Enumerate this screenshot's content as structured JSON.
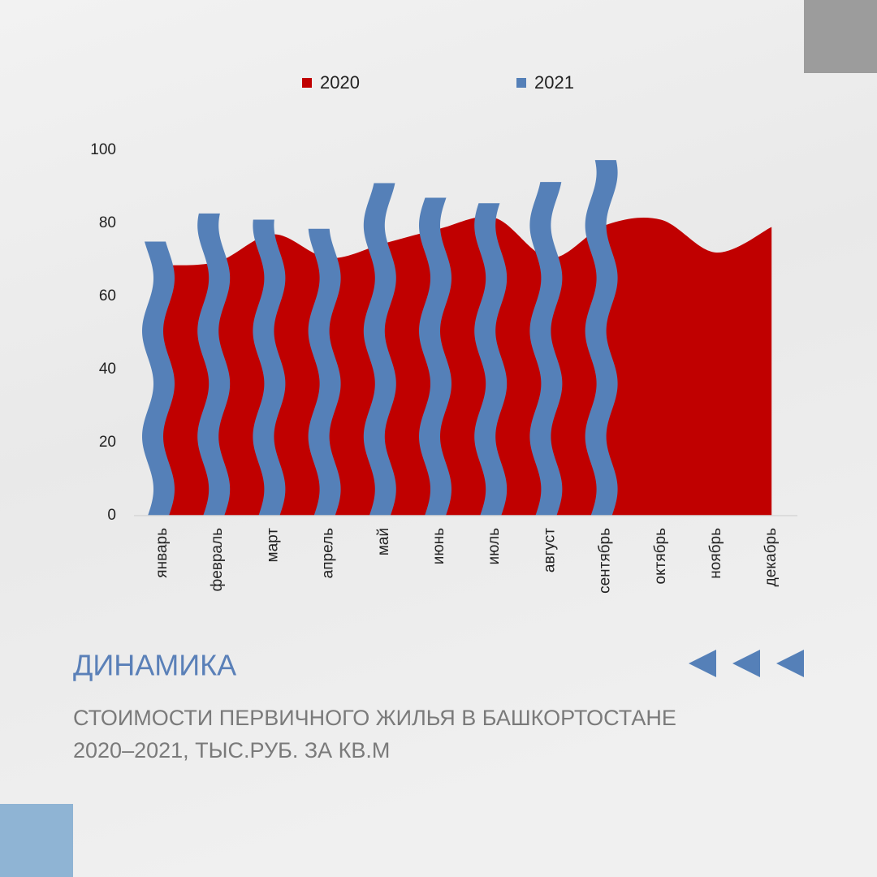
{
  "chart_data": {
    "type": "area-wavybar",
    "title": "ДИНАМИКА",
    "subtitle": [
      "СТОИМОСТИ ПЕРВИЧНОГО ЖИЛЬЯ В БАШКОРТОСТАНЕ",
      "2020–2021, ТЫС.РУБ. ЗА КВ.М"
    ],
    "categories": [
      "январь",
      "февраль",
      "март",
      "апрель",
      "май",
      "июнь",
      "июль",
      "август",
      "сентябрь",
      "октябрь",
      "ноябрь",
      "декабрь"
    ],
    "series": [
      {
        "name": "2020",
        "color": "#c00000",
        "kind": "area",
        "values": [
          68.5,
          69.5,
          77,
          70.5,
          74.5,
          78.5,
          81.5,
          70.5,
          79.5,
          81,
          72,
          79
        ]
      },
      {
        "name": "2021",
        "color": "#5580b8",
        "kind": "bar",
        "values": [
          75,
          82.7,
          81,
          78.5,
          91,
          87,
          85.5,
          91.3,
          97.3,
          null,
          null,
          null
        ]
      }
    ],
    "ylim": [
      0,
      100
    ],
    "yticks": [
      0,
      20,
      40,
      60,
      80,
      100
    ],
    "legend": "top",
    "grid": false
  }
}
